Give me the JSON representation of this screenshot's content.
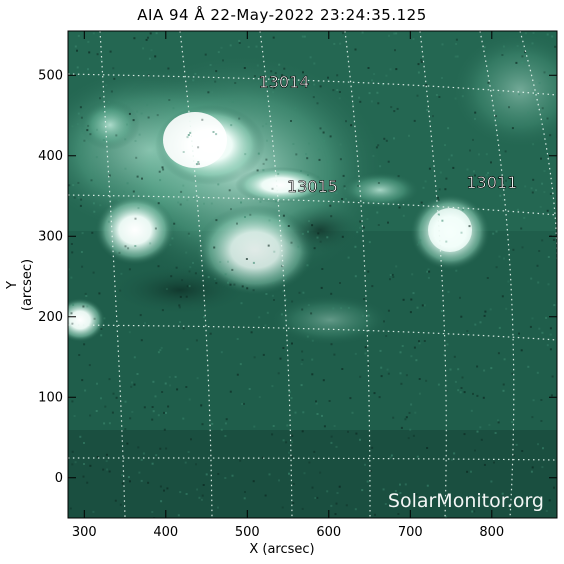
{
  "image": {
    "title": "AIA 94 Å 22-May-2022 23:24:35.125",
    "xlabel": "X (arcsec)",
    "ylabel": "Y (arcsec)",
    "watermark": "SolarMonitor.org",
    "background_color": "#1f5e4b",
    "colors": {
      "plasma_bright": "#f4fffb",
      "plasma_mid": "#8fd0b8",
      "plasma_dark": "#123d31",
      "grid": "#e9f7f1",
      "frame": "#000000"
    }
  },
  "chart_data": {
    "type": "scatter",
    "xlim": [
      280,
      880
    ],
    "ylim": [
      -50,
      555
    ],
    "xticks": [
      "300",
      "400",
      "500",
      "600",
      "700",
      "800"
    ],
    "yticks": [
      "0",
      "100",
      "200",
      "300",
      "400",
      "500"
    ],
    "x_tick_values": [
      300,
      400,
      500,
      600,
      700,
      800
    ],
    "y_tick_values": [
      0,
      100,
      200,
      300,
      400,
      500
    ],
    "grid": true,
    "regions": [
      {
        "label": "13014",
        "x": 545,
        "y": 485
      },
      {
        "label": "13015",
        "x": 580,
        "y": 355
      },
      {
        "label": "13011",
        "x": 800,
        "y": 360
      }
    ]
  }
}
